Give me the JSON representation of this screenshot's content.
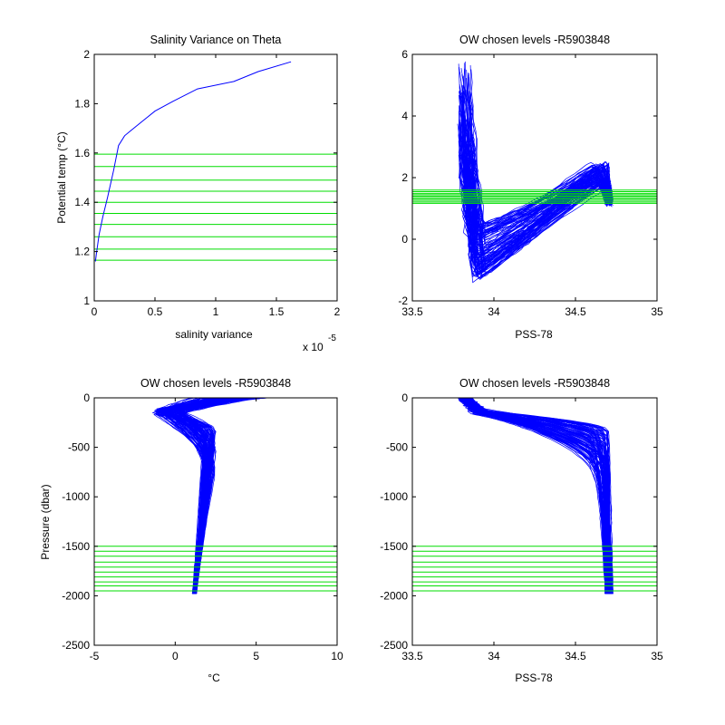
{
  "chart_data": [
    {
      "id": "p1",
      "type": "line",
      "title": "Salinity Variance on Theta",
      "xlabel": "salinity variance",
      "ylabel": "Potential temp (°C)",
      "x_multiplier_label": "x 10",
      "x_multiplier_exponent": "-5",
      "xlim": [
        0,
        2
      ],
      "ylim": [
        1,
        2
      ],
      "xticks": [
        0,
        0.5,
        1,
        1.5,
        2
      ],
      "xticklabels": [
        "0",
        "0.5",
        "1",
        "1.5",
        "2"
      ],
      "yticks": [
        1,
        1.2,
        1.4,
        1.6,
        1.8,
        2
      ],
      "yticklabels": [
        "1",
        "1.2",
        "1.4",
        "1.6",
        "1.8",
        "2"
      ],
      "grid": false,
      "line_color": "#0000ff",
      "level_color": "#00dd00",
      "series": [
        {
          "x": [
            0.01,
            0.02,
            0.04,
            0.07,
            0.11,
            0.16,
            0.2,
            0.25,
            0.3,
            0.4,
            0.5,
            0.65,
            0.85,
            1.15,
            1.35,
            1.62
          ],
          "y": [
            1.16,
            1.2,
            1.27,
            1.34,
            1.42,
            1.53,
            1.63,
            1.67,
            1.69,
            1.73,
            1.77,
            1.81,
            1.86,
            1.89,
            1.93,
            1.97
          ]
        }
      ],
      "levels": [
        1.165,
        1.21,
        1.26,
        1.31,
        1.355,
        1.4,
        1.445,
        1.49,
        1.545,
        1.595
      ]
    },
    {
      "id": "p2",
      "type": "line",
      "title": "OW chosen levels -R5903848",
      "xlabel": "PSS-78",
      "ylabel": "",
      "xlim": [
        33.5,
        35
      ],
      "ylim": [
        -2,
        6
      ],
      "xticks": [
        33.5,
        34,
        34.5,
        35
      ],
      "xticklabels": [
        "33.5",
        "34",
        "34.5",
        "35"
      ],
      "yticks": [
        -2,
        0,
        2,
        4,
        6
      ],
      "yticklabels": [
        "-2",
        "0",
        "2",
        "4",
        "6"
      ],
      "grid": false,
      "line_color": "#0000ff",
      "level_color": "#00dd00",
      "levels": [
        1.165,
        1.21,
        1.26,
        1.31,
        1.355,
        1.4,
        1.445,
        1.49,
        1.545,
        1.595
      ],
      "profile_count": 110
    },
    {
      "id": "p3",
      "type": "line",
      "title": "OW chosen levels -R5903848",
      "xlabel": "°C",
      "ylabel": "Pressure (dbar)",
      "xlim": [
        -5,
        10
      ],
      "ylim": [
        -2500,
        0
      ],
      "xticks": [
        -5,
        0,
        5,
        10
      ],
      "xticklabels": [
        "-5",
        "0",
        "5",
        "10"
      ],
      "yticks": [
        -2500,
        -2000,
        -1500,
        -1000,
        -500,
        0
      ],
      "yticklabels": [
        "-2500",
        "-2000",
        "-1500",
        "-1000",
        "-500",
        "0"
      ],
      "grid": false,
      "line_color": "#0000ff",
      "level_color": "#00dd00",
      "levels": [
        -1500,
        -1550,
        -1600,
        -1660,
        -1710,
        -1760,
        -1810,
        -1860,
        -1900,
        -1950
      ],
      "profile_count": 110
    },
    {
      "id": "p4",
      "type": "line",
      "title": "OW chosen levels -R5903848",
      "xlabel": "PSS-78",
      "ylabel": "",
      "xlim": [
        33.5,
        35
      ],
      "ylim": [
        -2500,
        0
      ],
      "xticks": [
        33.5,
        34,
        34.5,
        35
      ],
      "xticklabels": [
        "33.5",
        "34",
        "34.5",
        "35"
      ],
      "yticks": [
        -2500,
        -2000,
        -1500,
        -1000,
        -500,
        0
      ],
      "yticklabels": [
        "-2500",
        "-2000",
        "-1500",
        "-1000",
        "-500",
        "0"
      ],
      "grid": false,
      "line_color": "#0000ff",
      "level_color": "#00dd00",
      "levels": [
        -1500,
        -1550,
        -1600,
        -1660,
        -1710,
        -1760,
        -1810,
        -1860,
        -1900,
        -1950
      ],
      "profile_count": 110
    }
  ]
}
